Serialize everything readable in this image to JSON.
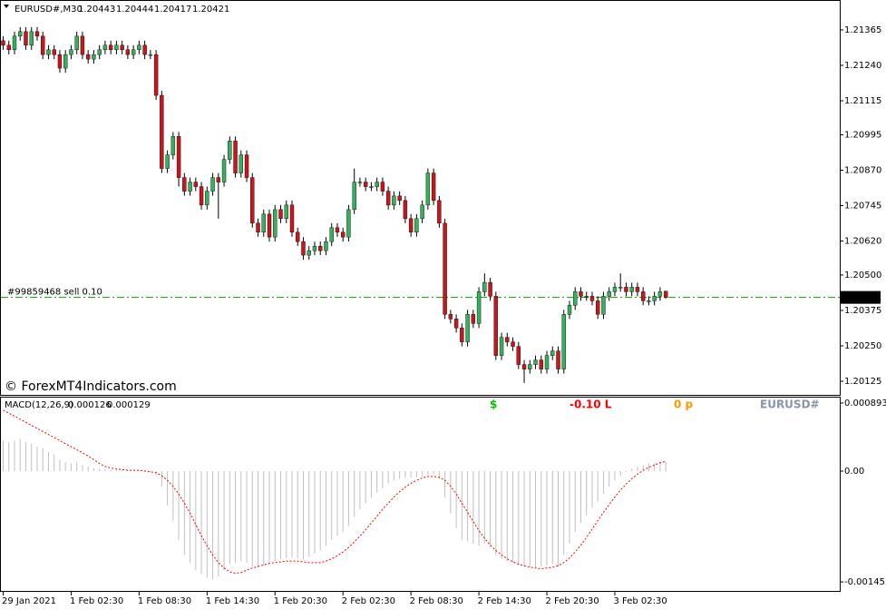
{
  "chart_data": [
    {
      "type": "candlestick",
      "title": "EURUSD#,M30",
      "watermark": "© ForexMT4Indicators.com",
      "order_line": {
        "label": "#99859468 sell 0.10",
        "value": 1.20421,
        "color": "#00a000"
      },
      "up_color": "#36b05c",
      "down_color": "#c8161d",
      "ylim": [
        1.20077,
        1.21461
      ],
      "yticks": [
        1.21365,
        {
          "value": 1.2124,
          "label": "1.21240"
        },
        1.21115,
        1.20995,
        {
          "value": 1.2087,
          "label": "1.20870"
        },
        1.20745,
        {
          "value": 1.2062,
          "label": "1.20620"
        },
        {
          "value": 1.205,
          "label": "1.20500"
        },
        1.20375,
        {
          "value": 1.2025,
          "label": "1.20250"
        },
        1.20125
      ],
      "categories": [
        "29 Jan 2021",
        null,
        null,
        null,
        null,
        null,
        null,
        null,
        null,
        null,
        null,
        null,
        "1 Feb 02:30",
        null,
        null,
        null,
        null,
        null,
        null,
        null,
        null,
        null,
        null,
        null,
        "1 Feb 08:30",
        null,
        null,
        null,
        null,
        null,
        null,
        null,
        null,
        null,
        null,
        null,
        "1 Feb 14:30",
        null,
        null,
        null,
        null,
        null,
        null,
        null,
        null,
        null,
        null,
        null,
        "1 Feb 20:30",
        null,
        null,
        null,
        null,
        null,
        null,
        null,
        null,
        null,
        null,
        null,
        "2 Feb 02:30",
        null,
        null,
        null,
        null,
        null,
        null,
        null,
        null,
        null,
        null,
        null,
        "2 Feb 08:30",
        null,
        null,
        null,
        null,
        null,
        null,
        null,
        null,
        null,
        null,
        null,
        "2 Feb 14:30",
        null,
        null,
        null,
        null,
        null,
        null,
        null,
        null,
        null,
        null,
        null,
        "2 Feb 20:30",
        null,
        null,
        null,
        null,
        null,
        null,
        null,
        null,
        null,
        null,
        null,
        "3 Feb 02:30",
        null,
        null,
        null,
        null,
        null,
        null,
        null,
        null,
        null
      ],
      "open": [
        1.21327,
        1.21311,
        1.21295,
        1.21343,
        1.21359,
        1.21311,
        1.21359,
        1.21343,
        1.21278,
        1.21295,
        1.21278,
        1.2123,
        1.21278,
        1.21295,
        1.21343,
        1.21278,
        1.21262,
        1.21278,
        1.21295,
        1.21311,
        1.21295,
        1.21311,
        1.21295,
        1.21278,
        1.21295,
        1.21311,
        1.21278,
        1.21278,
        1.21134,
        1.20876,
        1.20924,
        1.20989,
        1.20844,
        1.20796,
        1.20828,
        1.20812,
        1.20747,
        1.20796,
        1.20844,
        1.20828,
        1.20908,
        1.20973,
        1.2086,
        1.20924,
        1.20844,
        1.20683,
        1.20651,
        1.20715,
        1.20634,
        1.20731,
        1.20699,
        1.20747,
        1.20651,
        1.20618,
        1.2057,
        1.20586,
        1.20602,
        1.20586,
        1.20618,
        1.20667,
        1.20651,
        1.20634,
        1.20731,
        1.20828,
        1.20828,
        1.20812,
        1.20812,
        1.20828,
        1.20796,
        1.20747,
        1.20779,
        1.20763,
        1.20699,
        1.20651,
        1.20699,
        1.20747,
        1.2086,
        1.20763,
        1.20683,
        1.20361,
        1.20345,
        1.20313,
        1.20264,
        1.20361,
        1.20329,
        1.20441,
        1.20474,
        1.20425,
        1.20216,
        1.2028,
        1.20264,
        1.20248,
        1.20184,
        1.20168,
        1.20184,
        1.202,
        1.20168,
        1.20216,
        1.20232,
        1.20168,
        1.20361,
        1.20393,
        1.20441,
        1.20425,
        1.20425,
        1.20409,
        1.20361,
        1.20425,
        1.20441,
        1.20457,
        1.20457,
        1.20441,
        1.20457,
        1.20441,
        1.20409,
        1.20409,
        1.20425,
        1.20443
      ],
      "high": [
        1.21343,
        1.21327,
        1.21359,
        1.21375,
        1.21375,
        1.21375,
        1.21375,
        1.21359,
        1.21311,
        1.21311,
        1.21294,
        1.21294,
        1.21311,
        1.21359,
        1.21359,
        1.21294,
        1.21294,
        1.21311,
        1.21327,
        1.21327,
        1.21327,
        1.21327,
        1.21311,
        1.21311,
        1.21327,
        1.21327,
        1.21294,
        1.21294,
        1.2115,
        1.2094,
        1.21005,
        1.21005,
        1.2086,
        1.20844,
        1.20844,
        1.20828,
        1.20812,
        1.2086,
        1.2086,
        1.20924,
        1.20989,
        1.20989,
        1.2094,
        1.2094,
        1.2086,
        1.20699,
        1.20731,
        1.20731,
        1.20747,
        1.20747,
        1.20763,
        1.20763,
        1.20667,
        1.20634,
        1.20602,
        1.20618,
        1.20618,
        1.20634,
        1.20683,
        1.20683,
        1.20667,
        1.20747,
        1.20876,
        1.20844,
        1.20844,
        1.20828,
        1.20844,
        1.20844,
        1.20812,
        1.20795,
        1.20795,
        1.20779,
        1.20715,
        1.20715,
        1.20763,
        1.20876,
        1.20876,
        1.20779,
        1.20699,
        1.20377,
        1.20361,
        1.20329,
        1.20377,
        1.20377,
        1.20457,
        1.20506,
        1.2049,
        1.20441,
        1.20296,
        1.20296,
        1.2028,
        1.20264,
        1.202,
        1.202,
        1.20216,
        1.20216,
        1.20232,
        1.20248,
        1.20248,
        1.20377,
        1.20409,
        1.20457,
        1.20457,
        1.20441,
        1.20441,
        1.20425,
        1.20441,
        1.20457,
        1.20473,
        1.20506,
        1.20473,
        1.20473,
        1.20473,
        1.20457,
        1.20425,
        1.20441,
        1.20457,
        1.20444
      ],
      "low": [
        1.21295,
        1.21279,
        1.21279,
        1.21327,
        1.21295,
        1.21295,
        1.21327,
        1.21262,
        1.21262,
        1.21262,
        1.21214,
        1.21214,
        1.21262,
        1.21279,
        1.21262,
        1.21246,
        1.21246,
        1.21262,
        1.21279,
        1.21279,
        1.21279,
        1.21279,
        1.21262,
        1.21262,
        1.21279,
        1.21262,
        1.21262,
        1.21118,
        1.2086,
        1.2086,
        1.20908,
        1.20812,
        1.2078,
        1.2078,
        1.20796,
        1.20731,
        1.20731,
        1.2078,
        1.20699,
        1.20812,
        1.20892,
        1.20844,
        1.20844,
        1.20828,
        1.20667,
        1.20635,
        1.20635,
        1.20618,
        1.20618,
        1.20683,
        1.20683,
        1.20635,
        1.20602,
        1.20554,
        1.20554,
        1.2057,
        1.2057,
        1.2057,
        1.20602,
        1.20635,
        1.20618,
        1.20618,
        1.20715,
        1.20812,
        1.20796,
        1.20796,
        1.20796,
        1.2078,
        1.20731,
        1.20731,
        1.20747,
        1.20683,
        1.20635,
        1.20635,
        1.20683,
        1.20731,
        1.20747,
        1.20667,
        1.20345,
        1.20329,
        1.20297,
        1.20248,
        1.20248,
        1.20313,
        1.20313,
        1.20425,
        1.20409,
        1.202,
        1.202,
        1.20248,
        1.20232,
        1.20168,
        1.20119,
        1.20152,
        1.20168,
        1.20152,
        1.20152,
        1.202,
        1.20152,
        1.20152,
        1.20345,
        1.20377,
        1.20409,
        1.20409,
        1.20393,
        1.20345,
        1.20345,
        1.20409,
        1.20425,
        1.20441,
        1.20425,
        1.20425,
        1.20425,
        1.20393,
        1.20393,
        1.20393,
        1.20409,
        1.20417
      ],
      "close": [
        1.21311,
        1.21295,
        1.21343,
        1.21359,
        1.21311,
        1.21359,
        1.21343,
        1.21278,
        1.21295,
        1.21278,
        1.2123,
        1.21278,
        1.21295,
        1.21343,
        1.21278,
        1.21262,
        1.21278,
        1.21295,
        1.21311,
        1.21295,
        1.21311,
        1.21295,
        1.21278,
        1.21295,
        1.21311,
        1.21278,
        1.21278,
        1.21134,
        1.20876,
        1.20924,
        1.20989,
        1.20844,
        1.20796,
        1.20828,
        1.20812,
        1.20747,
        1.20796,
        1.20844,
        1.20828,
        1.20908,
        1.20973,
        1.2086,
        1.20924,
        1.20844,
        1.20683,
        1.20651,
        1.20715,
        1.20634,
        1.20731,
        1.20699,
        1.20747,
        1.20651,
        1.20618,
        1.2057,
        1.20586,
        1.20602,
        1.20586,
        1.20618,
        1.20667,
        1.20651,
        1.20634,
        1.20731,
        1.20828,
        1.20828,
        1.20812,
        1.20812,
        1.20828,
        1.20796,
        1.20747,
        1.20779,
        1.20763,
        1.20699,
        1.20651,
        1.20699,
        1.20747,
        1.2086,
        1.20763,
        1.20683,
        1.20361,
        1.20345,
        1.20313,
        1.20264,
        1.20361,
        1.20329,
        1.20441,
        1.20474,
        1.20425,
        1.20216,
        1.2028,
        1.20264,
        1.20248,
        1.20184,
        1.20168,
        1.20184,
        1.202,
        1.20168,
        1.20216,
        1.20232,
        1.20168,
        1.20361,
        1.20393,
        1.20441,
        1.20425,
        1.20425,
        1.20409,
        1.20361,
        1.20425,
        1.20441,
        1.20457,
        1.20457,
        1.20441,
        1.20457,
        1.20441,
        1.20409,
        1.20409,
        1.20425,
        1.20441,
        1.20421
      ]
    },
    {
      "type": "macd",
      "title": "MACD(12,26,9)",
      "indicator_labels": [
        {
          "text": "$",
          "color": "#00c000"
        },
        {
          "text": "-0.10 L",
          "color": "#ff0000"
        },
        {
          "text": "0 p",
          "color": "#ff9900"
        },
        {
          "text": "EURUSD#",
          "color": "#8895a8"
        }
      ],
      "ylim": [
        -0.001583,
        0.000976
      ],
      "yticks": [
        0.000893,
        {
          "value": 0,
          "label": "0.00"
        },
        -0.001453
      ],
      "histogram": {
        "color": "#c0c0c0",
        "values": [
          0.0004,
          0.00038,
          0.0004,
          0.00042,
          0.00038,
          0.00036,
          0.00032,
          0.0003,
          0.00025,
          0.00022,
          0.00015,
          0.00012,
          0.0001,
          0.00012,
          8e-05,
          6e-05,
          4e-05,
          3e-05,
          3e-05,
          2e-05,
          2e-05,
          1e-05,
          1e-05,
          0,
          1e-05,
          0,
          -1e-05,
          -5e-05,
          -0.0002,
          -0.00045,
          -0.00065,
          -0.0009,
          -0.0011,
          -0.0012,
          -0.0013,
          -0.00135,
          -0.0014,
          -0.00142,
          -0.00138,
          -0.0013,
          -0.00122,
          -0.0012,
          -0.00118,
          -0.0012,
          -0.00125,
          -0.00126,
          -0.00124,
          -0.00122,
          -0.00118,
          -0.00116,
          -0.00114,
          -0.00113,
          -0.00114,
          -0.00115,
          -0.00112,
          -0.00108,
          -0.00104,
          -0.00098,
          -0.0009,
          -0.00085,
          -0.0008,
          -0.00072,
          -0.0006,
          -0.0005,
          -0.00042,
          -0.00035,
          -0.00028,
          -0.00022,
          -0.00016,
          -0.00012,
          -0.0001,
          -9e-05,
          -9e-05,
          -8e-05,
          -7e-05,
          -5e-05,
          -4e-05,
          -0.0001,
          -0.00035,
          -0.00055,
          -0.00075,
          -0.0009,
          -0.00092,
          -0.00095,
          -0.00098,
          -0.00095,
          -0.001,
          -0.0011,
          -0.00115,
          -0.00118,
          -0.0012,
          -0.00123,
          -0.00125,
          -0.00126,
          -0.00126,
          -0.00125,
          -0.00124,
          -0.00122,
          -0.00125,
          -0.0011,
          -0.00095,
          -0.0008,
          -0.00068,
          -0.00058,
          -0.00048,
          -0.0004,
          -0.0003,
          -0.0002,
          -0.00012,
          -6e-05,
          -1e-05,
          3e-05,
          6e-05,
          8e-05,
          0.0001,
          0.00011,
          0.00012,
          0.000126
        ]
      },
      "signal": {
        "color": "#ff0000",
        "values": [
          0.0008,
          0.00076,
          0.00072,
          0.00068,
          0.00064,
          0.0006,
          0.00056,
          0.00052,
          0.00048,
          0.00044,
          0.0004,
          0.00036,
          0.00032,
          0.00028,
          0.00024,
          0.0002,
          0.00015,
          0.0001,
          6e-05,
          4e-05,
          3e-05,
          2e-05,
          1e-05,
          1e-05,
          1e-05,
          0,
          -1e-05,
          -2e-05,
          -6e-05,
          -0.00012,
          -0.0002,
          -0.0003,
          -0.00042,
          -0.00055,
          -0.0007,
          -0.00085,
          -0.00098,
          -0.0011,
          -0.0012,
          -0.00127,
          -0.00132,
          -0.00134,
          -0.00133,
          -0.0013,
          -0.00127,
          -0.00125,
          -0.00123,
          -0.00121,
          -0.0012,
          -0.00119,
          -0.00118,
          -0.00118,
          -0.00118,
          -0.00119,
          -0.0012,
          -0.0012,
          -0.0012,
          -0.00118,
          -0.00115,
          -0.00111,
          -0.00106,
          -0.001,
          -0.00093,
          -0.00085,
          -0.00077,
          -0.00068,
          -0.00059,
          -0.0005,
          -0.00042,
          -0.00034,
          -0.00027,
          -0.00021,
          -0.00016,
          -0.00012,
          -9e-05,
          -7e-05,
          -7e-05,
          -8e-05,
          -0.00012,
          -0.0002,
          -0.0003,
          -0.00042,
          -0.00054,
          -0.00066,
          -0.00078,
          -0.00088,
          -0.00097,
          -0.00104,
          -0.0011,
          -0.00115,
          -0.00119,
          -0.00122,
          -0.00124,
          -0.00126,
          -0.00127,
          -0.00128,
          -0.00127,
          -0.00126,
          -0.00124,
          -0.0012,
          -0.00114,
          -0.00106,
          -0.00097,
          -0.00087,
          -0.00076,
          -0.00065,
          -0.00054,
          -0.00044,
          -0.00034,
          -0.00025,
          -0.00017,
          -0.0001,
          -4e-05,
          1e-05,
          5e-05,
          8e-05,
          0.00011,
          0.000129
        ]
      }
    }
  ]
}
